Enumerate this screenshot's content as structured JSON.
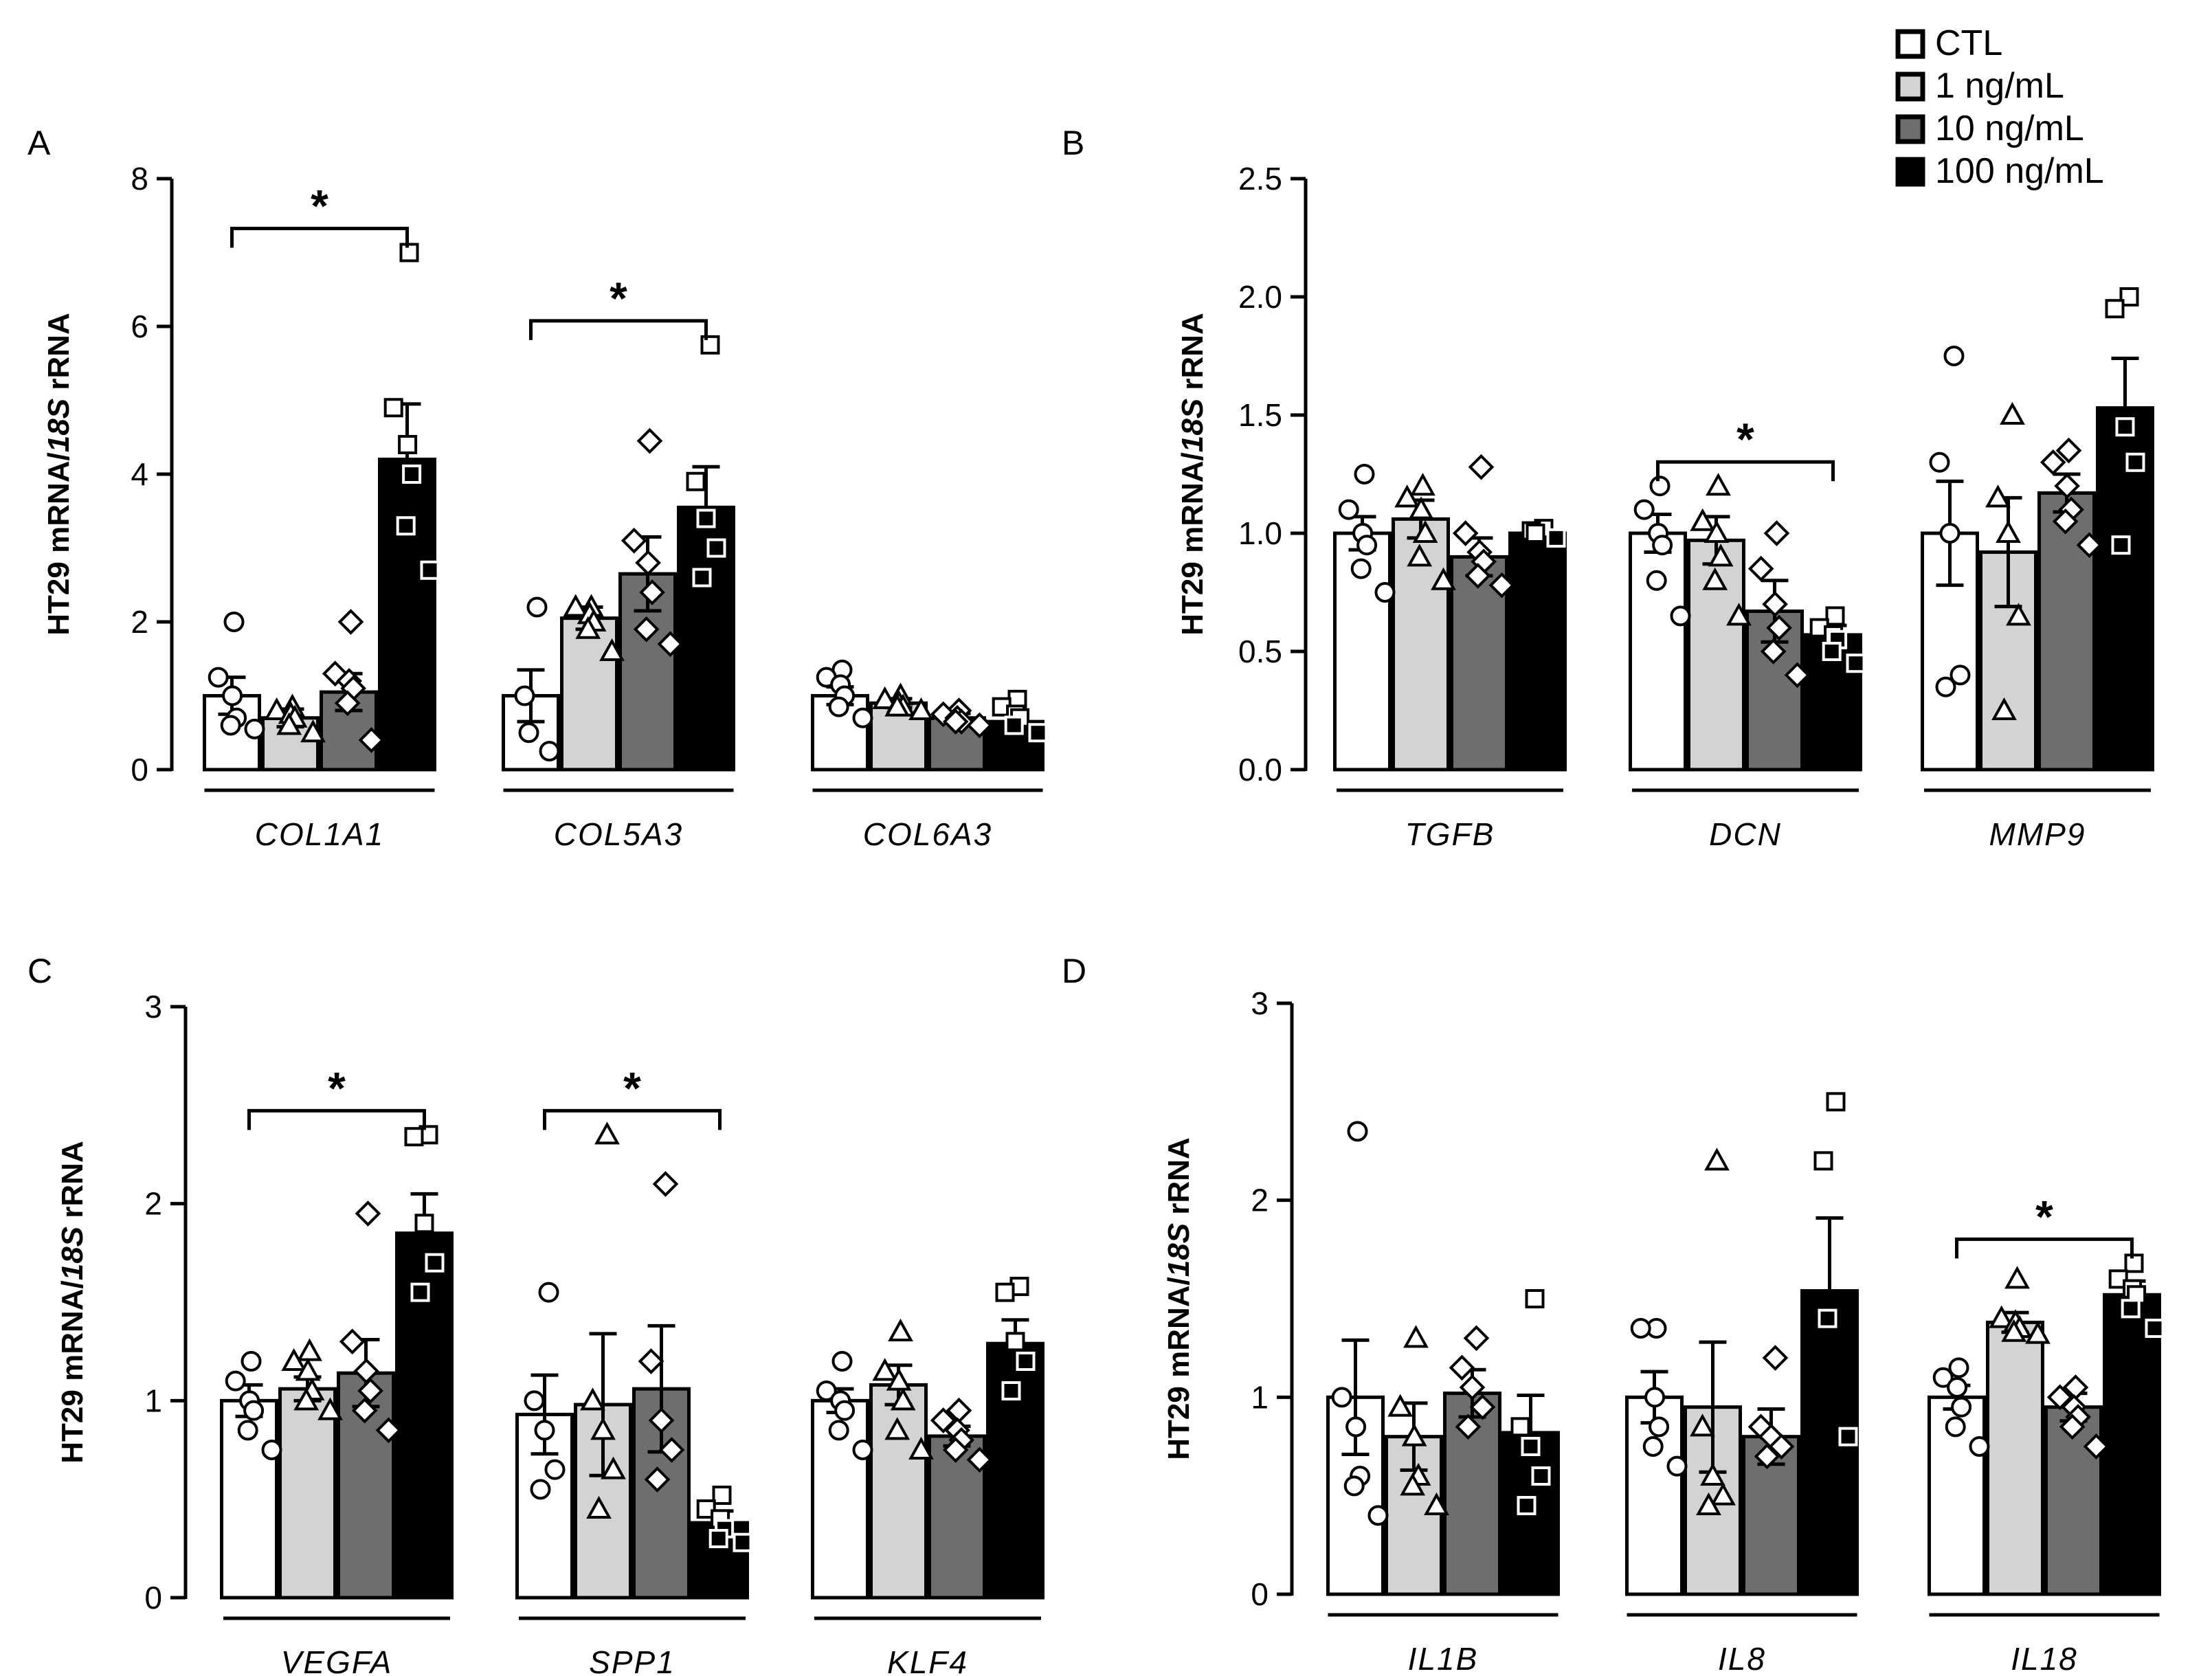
{
  "figure": {
    "legend": {
      "title": "",
      "entries": [
        {
          "label": "CTL",
          "color": "#ffffff"
        },
        {
          "label": "1 ng/mL",
          "color": "#d3d3d3"
        },
        {
          "label": "10 ng/mL",
          "color": "#6e6e6e"
        },
        {
          "label": "100 ng/mL",
          "color": "#000000"
        }
      ]
    }
  },
  "chart_data": [
    {
      "panel": "A",
      "type": "bar",
      "ylabel": {
        "pre": "HT29 mRNA/",
        "italic": "18S",
        "post": " rRNA"
      },
      "ylim": [
        0,
        8
      ],
      "yticks": [
        0,
        2,
        4,
        6,
        8
      ],
      "ytick_labels": [
        "0",
        "2",
        "4",
        "6",
        "8"
      ],
      "groups": [
        {
          "name": "COL1A1",
          "means": [
            1.0,
            0.7,
            1.05,
            4.2
          ],
          "sems": [
            0.25,
            0.12,
            0.25,
            0.75
          ],
          "points": [
            [
              2.0,
              1.25,
              1.0,
              0.7,
              0.6,
              0.55
            ],
            [
              0.85,
              0.8,
              0.75,
              0.7,
              0.6,
              0.5
            ],
            [
              2.0,
              1.3,
              1.2,
              1.1,
              0.9,
              0.4
            ],
            [
              7.0,
              4.9,
              4.4,
              4.0,
              3.3,
              2.7
            ]
          ],
          "sig": {
            "from": 0,
            "to": 3,
            "label": "*"
          }
        },
        {
          "name": "COL5A3",
          "means": [
            1.0,
            2.05,
            2.65,
            3.55
          ],
          "sems": [
            0.35,
            0.15,
            0.5,
            0.55
          ],
          "points": [
            [
              2.2,
              1.0,
              0.5,
              0.25
            ],
            [
              2.2,
              2.2,
              2.1,
              2.0,
              1.9,
              1.6
            ],
            [
              4.45,
              3.1,
              2.8,
              2.4,
              1.9,
              1.7
            ],
            [
              5.75,
              3.9,
              3.4,
              3.0,
              2.6
            ]
          ],
          "sig": {
            "from": 0,
            "to": 3,
            "label": "*"
          }
        },
        {
          "name": "COL6A3",
          "means": [
            1.0,
            0.9,
            0.7,
            0.65
          ],
          "sems": [
            0.12,
            0.06,
            0.06,
            0.1
          ],
          "points": [
            [
              1.35,
              1.25,
              1.15,
              1.0,
              0.85,
              0.7
            ],
            [
              1.0,
              0.95,
              0.9,
              0.85,
              0.85,
              0.8
            ],
            [
              0.8,
              0.75,
              0.7,
              0.65,
              0.65,
              0.6
            ],
            [
              0.95,
              0.85,
              0.75,
              0.7,
              0.6,
              0.5
            ]
          ],
          "sig": null
        }
      ]
    },
    {
      "panel": "B",
      "type": "bar",
      "ylabel": {
        "pre": "HT29 mRNA/",
        "italic": "18S",
        "post": " rRNA"
      },
      "ylim": [
        0,
        2.5
      ],
      "yticks": [
        0,
        0.5,
        1.0,
        1.5,
        2.0,
        2.5
      ],
      "ytick_labels": [
        "0.0",
        "0.5",
        "1.0",
        "1.5",
        "2.0",
        "2.5"
      ],
      "groups": [
        {
          "name": "TGFB",
          "means": [
            1.0,
            1.06,
            0.9,
            1.0
          ],
          "sems": [
            0.07,
            0.08,
            0.08,
            0.02
          ],
          "points": [
            [
              1.25,
              1.1,
              1.0,
              0.95,
              0.85,
              0.75
            ],
            [
              1.2,
              1.15,
              1.1,
              1.0,
              0.9,
              0.8
            ],
            [
              1.28,
              1.0,
              0.92,
              0.88,
              0.82,
              0.78
            ],
            [
              1.02,
              1.01,
              1.0,
              0.98
            ]
          ],
          "sig": null
        },
        {
          "name": "DCN",
          "means": [
            1.0,
            0.97,
            0.67,
            0.57
          ],
          "sems": [
            0.08,
            0.1,
            0.13,
            0.04
          ],
          "points": [
            [
              1.2,
              1.1,
              1.0,
              0.95,
              0.8,
              0.65
            ],
            [
              1.2,
              1.05,
              1.0,
              0.9,
              0.8,
              0.65
            ],
            [
              1.0,
              0.85,
              0.7,
              0.6,
              0.5,
              0.4
            ],
            [
              0.65,
              0.6,
              0.57,
              0.55,
              0.5,
              0.45
            ]
          ],
          "sig": {
            "from": 0,
            "to": 3,
            "label": "*"
          }
        },
        {
          "name": "MMP9",
          "means": [
            1.0,
            0.92,
            1.17,
            1.53
          ],
          "sems": [
            0.22,
            0.23,
            0.08,
            0.21
          ],
          "points": [
            [
              1.75,
              1.3,
              1.0,
              0.4,
              0.35
            ],
            [
              1.5,
              1.15,
              1.0,
              0.65,
              0.25
            ],
            [
              1.35,
              1.3,
              1.2,
              1.1,
              1.05,
              0.95
            ],
            [
              2.0,
              1.95,
              1.45,
              1.3,
              0.95
            ]
          ],
          "sig": null
        }
      ]
    },
    {
      "panel": "C",
      "type": "bar",
      "ylabel": {
        "pre": "HT29 mRNA/",
        "italic": "18S",
        "post": " rRNA"
      },
      "ylim": [
        0,
        3
      ],
      "yticks": [
        0,
        1,
        2,
        3
      ],
      "ytick_labels": [
        "0",
        "1",
        "2",
        "3"
      ],
      "groups": [
        {
          "name": "VEGFA",
          "means": [
            1.0,
            1.06,
            1.14,
            1.85
          ],
          "sems": [
            0.08,
            0.06,
            0.17,
            0.2
          ],
          "points": [
            [
              1.2,
              1.1,
              1.0,
              0.95,
              0.85,
              0.75
            ],
            [
              1.25,
              1.2,
              1.15,
              1.05,
              1.0,
              0.95
            ],
            [
              1.95,
              1.3,
              1.15,
              1.05,
              0.95,
              0.85
            ],
            [
              2.35,
              2.34,
              1.9,
              1.7,
              1.55
            ]
          ],
          "sig": {
            "from": 0,
            "to": 3,
            "label": "*"
          }
        },
        {
          "name": "SPP1",
          "means": [
            0.93,
            0.98,
            1.06,
            0.38
          ],
          "sems": [
            0.2,
            0.36,
            0.32,
            0.06
          ],
          "points": [
            [
              1.55,
              1.0,
              0.85,
              0.65,
              0.55
            ],
            [
              2.35,
              1.0,
              0.85,
              0.65,
              0.45
            ],
            [
              2.1,
              1.2,
              0.9,
              0.75,
              0.6
            ],
            [
              0.52,
              0.45,
              0.4,
              0.35,
              0.3,
              0.28
            ]
          ],
          "sig": {
            "from": 0,
            "to": 3,
            "label": "*"
          }
        },
        {
          "name": "KLF4",
          "means": [
            1.0,
            1.08,
            0.82,
            1.29
          ],
          "sems": [
            0.06,
            0.1,
            0.05,
            0.12
          ],
          "points": [
            [
              1.2,
              1.05,
              1.0,
              0.95,
              0.85,
              0.75
            ],
            [
              1.35,
              1.15,
              1.1,
              1.0,
              0.85,
              0.75
            ],
            [
              0.95,
              0.9,
              0.85,
              0.8,
              0.75,
              0.7
            ],
            [
              1.58,
              1.55,
              1.3,
              1.2,
              1.05
            ]
          ],
          "sig": null
        }
      ]
    },
    {
      "panel": "D",
      "type": "bar",
      "ylabel": {
        "pre": "HT29 mRNA/",
        "italic": "18S",
        "post": " rRNA"
      },
      "ylim": [
        0,
        3
      ],
      "yticks": [
        0,
        1,
        2,
        3
      ],
      "ytick_labels": [
        "0",
        "1",
        "2",
        "3"
      ],
      "groups": [
        {
          "name": "IL1B",
          "means": [
            1.0,
            0.8,
            1.02,
            0.82
          ],
          "sems": [
            0.29,
            0.17,
            0.12,
            0.19
          ],
          "points": [
            [
              2.35,
              1.0,
              0.85,
              0.6,
              0.55,
              0.4
            ],
            [
              1.3,
              0.95,
              0.8,
              0.6,
              0.55,
              0.45
            ],
            [
              1.3,
              1.15,
              1.05,
              0.95,
              0.85
            ],
            [
              1.5,
              0.85,
              0.75,
              0.6,
              0.45
            ]
          ],
          "sig": null
        },
        {
          "name": "IL8",
          "means": [
            1.0,
            0.95,
            0.8,
            1.54
          ],
          "sems": [
            0.13,
            0.33,
            0.14,
            0.37
          ],
          "points": [
            [
              1.35,
              1.35,
              1.0,
              0.85,
              0.75,
              0.65
            ],
            [
              2.2,
              0.85,
              0.6,
              0.5,
              0.45
            ],
            [
              1.2,
              0.85,
              0.8,
              0.75,
              0.7
            ],
            [
              2.5,
              2.2,
              1.4,
              0.8
            ]
          ],
          "sig": null
        },
        {
          "name": "IL18",
          "means": [
            1.0,
            1.38,
            0.95,
            1.52
          ],
          "sems": [
            0.06,
            0.05,
            0.07,
            0.07
          ],
          "points": [
            [
              1.15,
              1.1,
              1.05,
              0.95,
              0.85,
              0.75
            ],
            [
              1.6,
              1.4,
              1.38,
              1.35,
              1.33,
              1.32
            ],
            [
              1.05,
              1.0,
              0.95,
              0.9,
              0.85,
              0.75
            ],
            [
              1.68,
              1.6,
              1.55,
              1.52,
              1.45,
              1.35
            ]
          ],
          "sig": {
            "from": 0,
            "to": 3,
            "label": "*"
          }
        }
      ]
    }
  ]
}
